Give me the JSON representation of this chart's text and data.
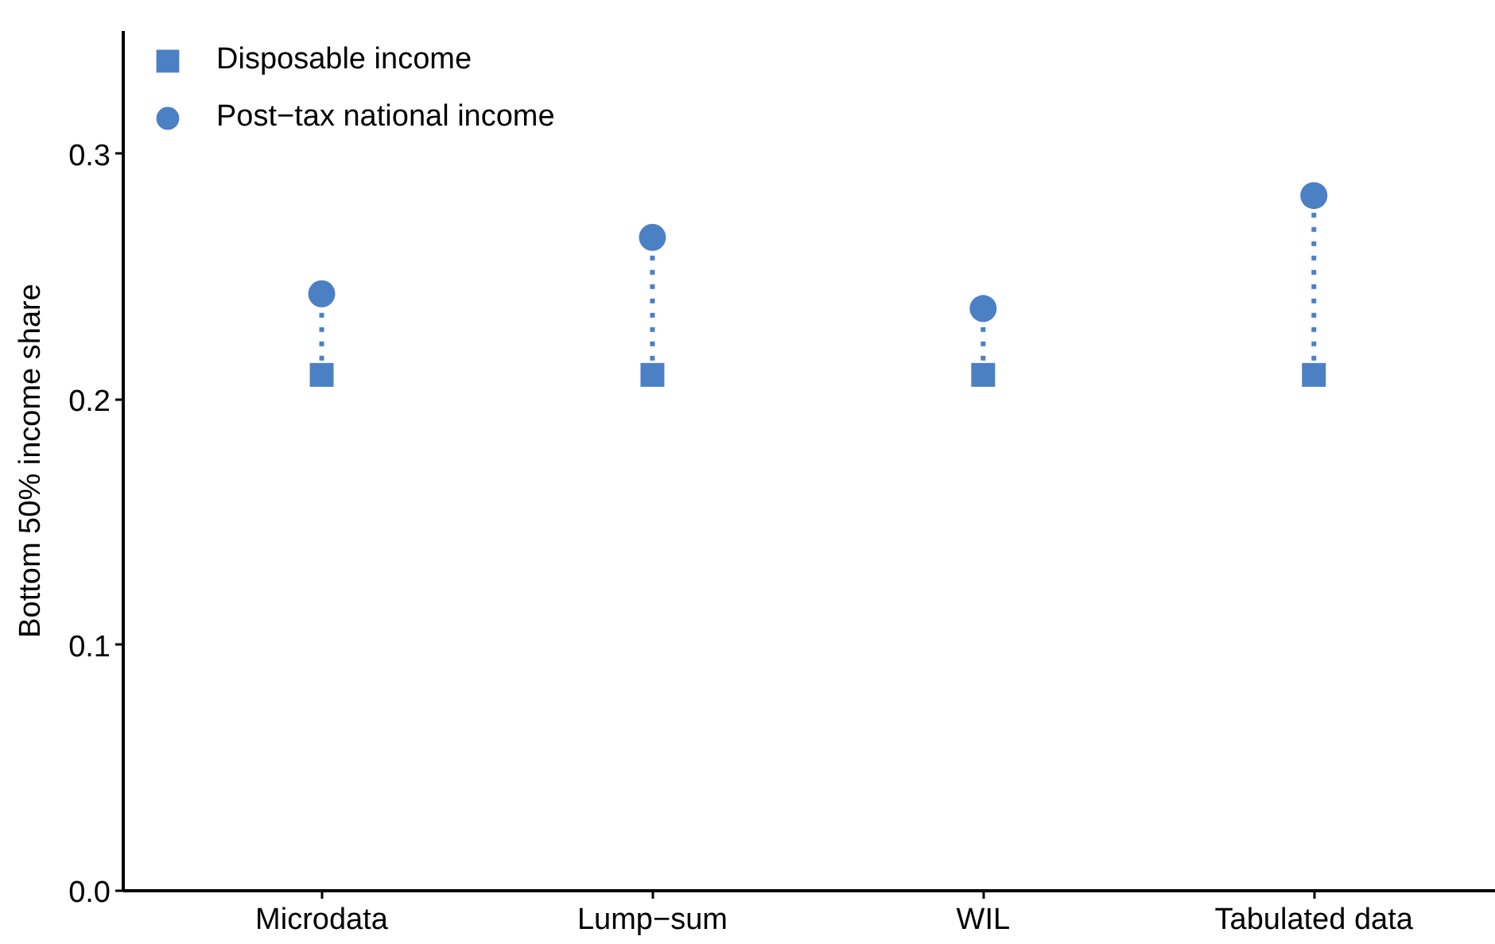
{
  "chart_data": {
    "type": "scatter",
    "ylabel": "Bottom 50% income share",
    "categories": [
      "Microdata",
      "Lump−sum",
      "WIL",
      "Tabulated data"
    ],
    "series": [
      {
        "name": "Disposable income",
        "color": "#4b80c4",
        "marker": "square",
        "values": [
          0.21,
          0.21,
          0.21,
          0.21
        ]
      },
      {
        "name": "Post−tax national income",
        "color": "#4b80c4",
        "marker": "circle",
        "values": [
          0.243,
          0.266,
          0.237,
          0.283
        ]
      }
    ],
    "ylim": [
      0,
      0.35
    ],
    "yticks": [
      {
        "value": 0,
        "label": "0.0"
      },
      0.1,
      0.2,
      0.3
    ],
    "legend": "top left",
    "grid": false,
    "line_style": "dotted"
  }
}
